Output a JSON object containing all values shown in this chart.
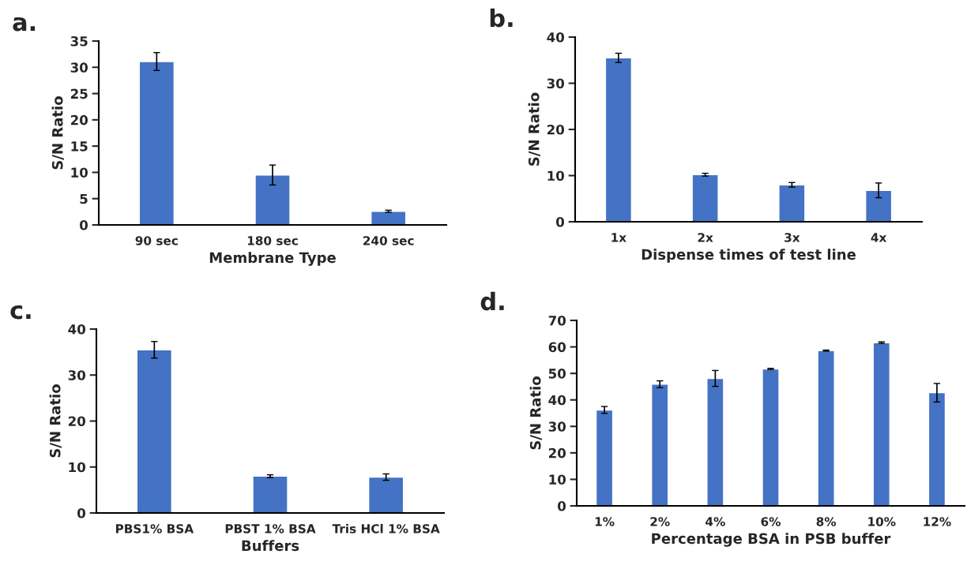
{
  "chart_data": [
    {
      "type": "bar",
      "title": "a.",
      "xlabel": "Membrane Type",
      "ylabel": "S/N Ratio",
      "categories": [
        "90 sec",
        "180 sec",
        "240 sec"
      ],
      "values": [
        31.1,
        9.5,
        2.6
      ],
      "errors": [
        1.7,
        1.9,
        0.2
      ],
      "color": "#4472c4",
      "ylim": [
        0,
        35
      ],
      "yticks": [
        0,
        5,
        10,
        15,
        20,
        25,
        30,
        35
      ],
      "grid": false
    },
    {
      "type": "bar",
      "title": "b.",
      "xlabel": "Dispense times of test line",
      "ylabel": "S/N Ratio",
      "categories": [
        "1x",
        "2x",
        "3x",
        "4x"
      ],
      "values": [
        35.5,
        10.2,
        8.0,
        6.8
      ],
      "errors": [
        1.0,
        0.3,
        0.5,
        1.6
      ],
      "color": "#4472c4",
      "ylim": [
        0,
        40
      ],
      "yticks": [
        0,
        10,
        20,
        30,
        40
      ],
      "grid": false
    },
    {
      "type": "bar",
      "title": "c.",
      "xlabel": "Buffers",
      "ylabel": "S/N Ratio",
      "categories": [
        "PBS1% BSA",
        "PBST 1% BSA",
        "Tris HCl 1% BSA"
      ],
      "values": [
        35.5,
        8.0,
        7.8
      ],
      "errors": [
        1.8,
        0.3,
        0.7
      ],
      "color": "#4472c4",
      "ylim": [
        0,
        40
      ],
      "yticks": [
        0,
        10,
        20,
        30,
        40
      ],
      "grid": false
    },
    {
      "type": "bar",
      "title": "d.",
      "xlabel": "Percentage BSA in PSB buffer",
      "ylabel": "S/N Ratio",
      "categories": [
        "1%",
        "2%",
        "4%",
        "6%",
        "8%",
        "10%",
        "12%"
      ],
      "values": [
        36.2,
        45.9,
        48.1,
        51.7,
        58.6,
        61.6,
        42.7
      ],
      "errors": [
        1.3,
        1.3,
        3.0,
        0.2,
        0.2,
        0.3,
        3.5
      ],
      "color": "#4472c4",
      "ylim": [
        0,
        70
      ],
      "yticks": [
        0,
        10,
        20,
        30,
        40,
        50,
        60,
        70
      ],
      "grid": false
    }
  ]
}
